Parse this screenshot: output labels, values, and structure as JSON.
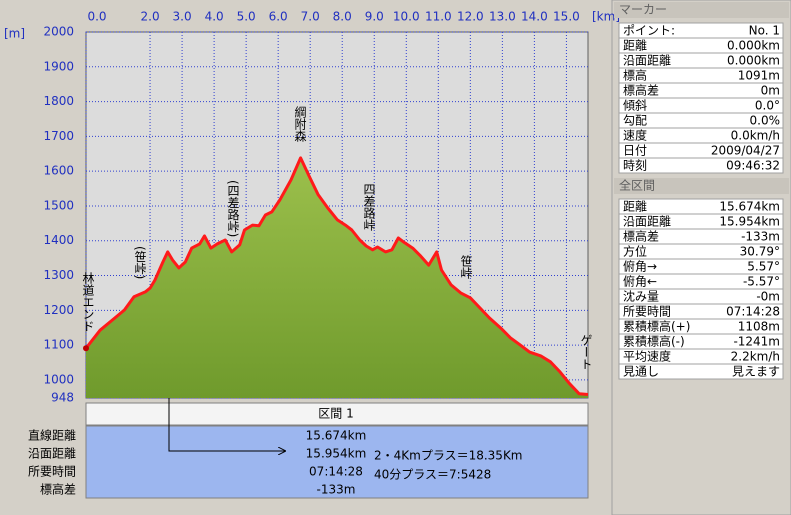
{
  "chart_data": {
    "type": "area",
    "x_unit": "[km]",
    "y_unit": "[m]",
    "x": [
      0,
      0.44,
      0.9,
      1.2,
      1.5,
      1.85,
      2.0,
      2.15,
      2.4,
      2.55,
      2.7,
      2.9,
      3.1,
      3.3,
      3.55,
      3.7,
      3.9,
      4.1,
      4.35,
      4.55,
      4.8,
      4.95,
      5.2,
      5.4,
      5.6,
      5.8,
      6.05,
      6.4,
      6.7,
      6.95,
      7.25,
      7.55,
      7.85,
      8.1,
      8.3,
      8.55,
      8.75,
      8.95,
      9.1,
      9.35,
      9.55,
      9.75,
      9.95,
      10.2,
      10.45,
      10.7,
      10.95,
      11.1,
      11.4,
      11.7,
      12.0,
      12.3,
      12.6,
      12.95,
      13.25,
      13.55,
      13.85,
      14.2,
      14.5,
      14.8,
      15.1,
      15.4,
      15.674
    ],
    "values": [
      1091,
      1143,
      1178,
      1201,
      1239,
      1253,
      1264,
      1287,
      1339,
      1368,
      1345,
      1322,
      1339,
      1379,
      1391,
      1414,
      1379,
      1391,
      1402,
      1368,
      1388,
      1431,
      1445,
      1443,
      1474,
      1483,
      1517,
      1575,
      1638,
      1589,
      1532,
      1494,
      1460,
      1445,
      1431,
      1402,
      1385,
      1374,
      1382,
      1368,
      1374,
      1408,
      1394,
      1379,
      1356,
      1330,
      1368,
      1316,
      1273,
      1250,
      1236,
      1207,
      1178,
      1149,
      1121,
      1101,
      1080,
      1069,
      1052,
      1023,
      989,
      960,
      958
    ],
    "xlim": [
      0,
      15.674
    ],
    "ylim": [
      948,
      2000
    ],
    "xticks": [
      {
        "value": 0,
        "label": "0.0"
      },
      {
        "value": 2,
        "label": "2.0"
      },
      {
        "value": 3,
        "label": "3.0"
      },
      {
        "value": 4,
        "label": "4.0"
      },
      {
        "value": 5,
        "label": "5.0"
      },
      {
        "value": 6,
        "label": "6.0"
      },
      {
        "value": 7,
        "label": "7.0"
      },
      {
        "value": 8,
        "label": "8.0"
      },
      {
        "value": 9,
        "label": "9.0"
      },
      {
        "value": 10,
        "label": "10.0"
      },
      {
        "value": 11,
        "label": "11.0"
      },
      {
        "value": 12,
        "label": "12.0"
      },
      {
        "value": 13,
        "label": "13.0"
      },
      {
        "value": 14,
        "label": "14.0"
      },
      {
        "value": 15,
        "label": "15.0"
      }
    ],
    "yticks": [
      948,
      1000,
      1100,
      1200,
      1300,
      1400,
      1500,
      1600,
      1700,
      1800,
      1900,
      2000
    ],
    "grid": true,
    "color": "#6f9a2c",
    "line_color": "#ff1a1a",
    "annotations": [
      "林道エンド",
      "(笹峠)",
      "(四差路峠)",
      "綱附森",
      "四差路峠",
      "笹峠",
      "ゲート"
    ]
  },
  "section": {
    "title": "区間 1",
    "rows": [
      {
        "label": "直線距離",
        "value": "15.674km"
      },
      {
        "label": "沿面距離",
        "value": "15.954km"
      },
      {
        "label": "所要時間",
        "value": "07:14:28"
      },
      {
        "label": "標高差",
        "value": "-133m"
      }
    ],
    "notes": [
      "2・4Kmプラス＝18.35Km",
      "40分プラス＝7:5428"
    ]
  },
  "marker_panel": {
    "title": "マーカー",
    "rows": [
      [
        "ポイント:",
        "No. 1"
      ],
      [
        "距離",
        "0.000km"
      ],
      [
        "沿面距離",
        "0.000km"
      ],
      [
        "標高",
        "1091m"
      ],
      [
        "標高差",
        "0m"
      ],
      [
        "傾斜",
        "0.0°"
      ],
      [
        "勾配",
        "0.0%"
      ],
      [
        "速度",
        "0.0km/h"
      ],
      [
        "日付",
        "2009/04/27"
      ],
      [
        "時刻",
        "09:46:32"
      ]
    ]
  },
  "total_panel": {
    "title": "全区間",
    "rows": [
      [
        "距離",
        "15.674km"
      ],
      [
        "沿面距離",
        "15.954km"
      ],
      [
        "標高差",
        "-133m"
      ],
      [
        "方位",
        "30.79°"
      ],
      [
        "俯角→",
        "5.57°"
      ],
      [
        "俯角←",
        "-5.57°"
      ],
      [
        "沈み量",
        "-0m"
      ],
      [
        "所要時間",
        "07:14:28"
      ],
      [
        "累積標高(+)",
        "1108m"
      ],
      [
        "累積標高(-)",
        "-1241m"
      ],
      [
        "平均速度",
        "2.2km/h"
      ],
      [
        "見通し",
        "見えます"
      ]
    ]
  }
}
